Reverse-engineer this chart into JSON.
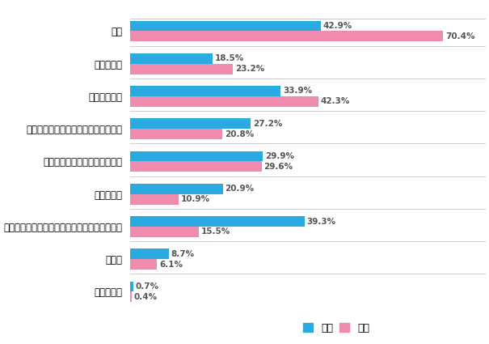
{
  "categories": [
    "家事",
    "看病・介護",
    "子や孫の世話",
    "健康や家庭内でのトラブルなどの相談",
    "喜びや悲しみを分かち合うこと",
    "お金の援助",
    "家具の移動・庭の手入れ・雪かきなどの手伝い",
    "その他",
    "わからない"
  ],
  "male_values": [
    42.9,
    18.5,
    33.9,
    27.2,
    29.9,
    20.9,
    39.3,
    8.7,
    0.7
  ],
  "female_values": [
    70.4,
    23.2,
    42.3,
    20.8,
    29.6,
    10.9,
    15.5,
    6.1,
    0.4
  ],
  "male_color": "#29ABE2",
  "female_color": "#F08BB0",
  "bar_height": 0.32,
  "xlim": [
    0,
    80
  ],
  "legend_male": "男性",
  "legend_female": "女性",
  "value_fontsize": 7.5,
  "label_fontsize": 8.5,
  "legend_fontsize": 9.0,
  "divider_color": "#cccccc",
  "text_color": "#555555"
}
